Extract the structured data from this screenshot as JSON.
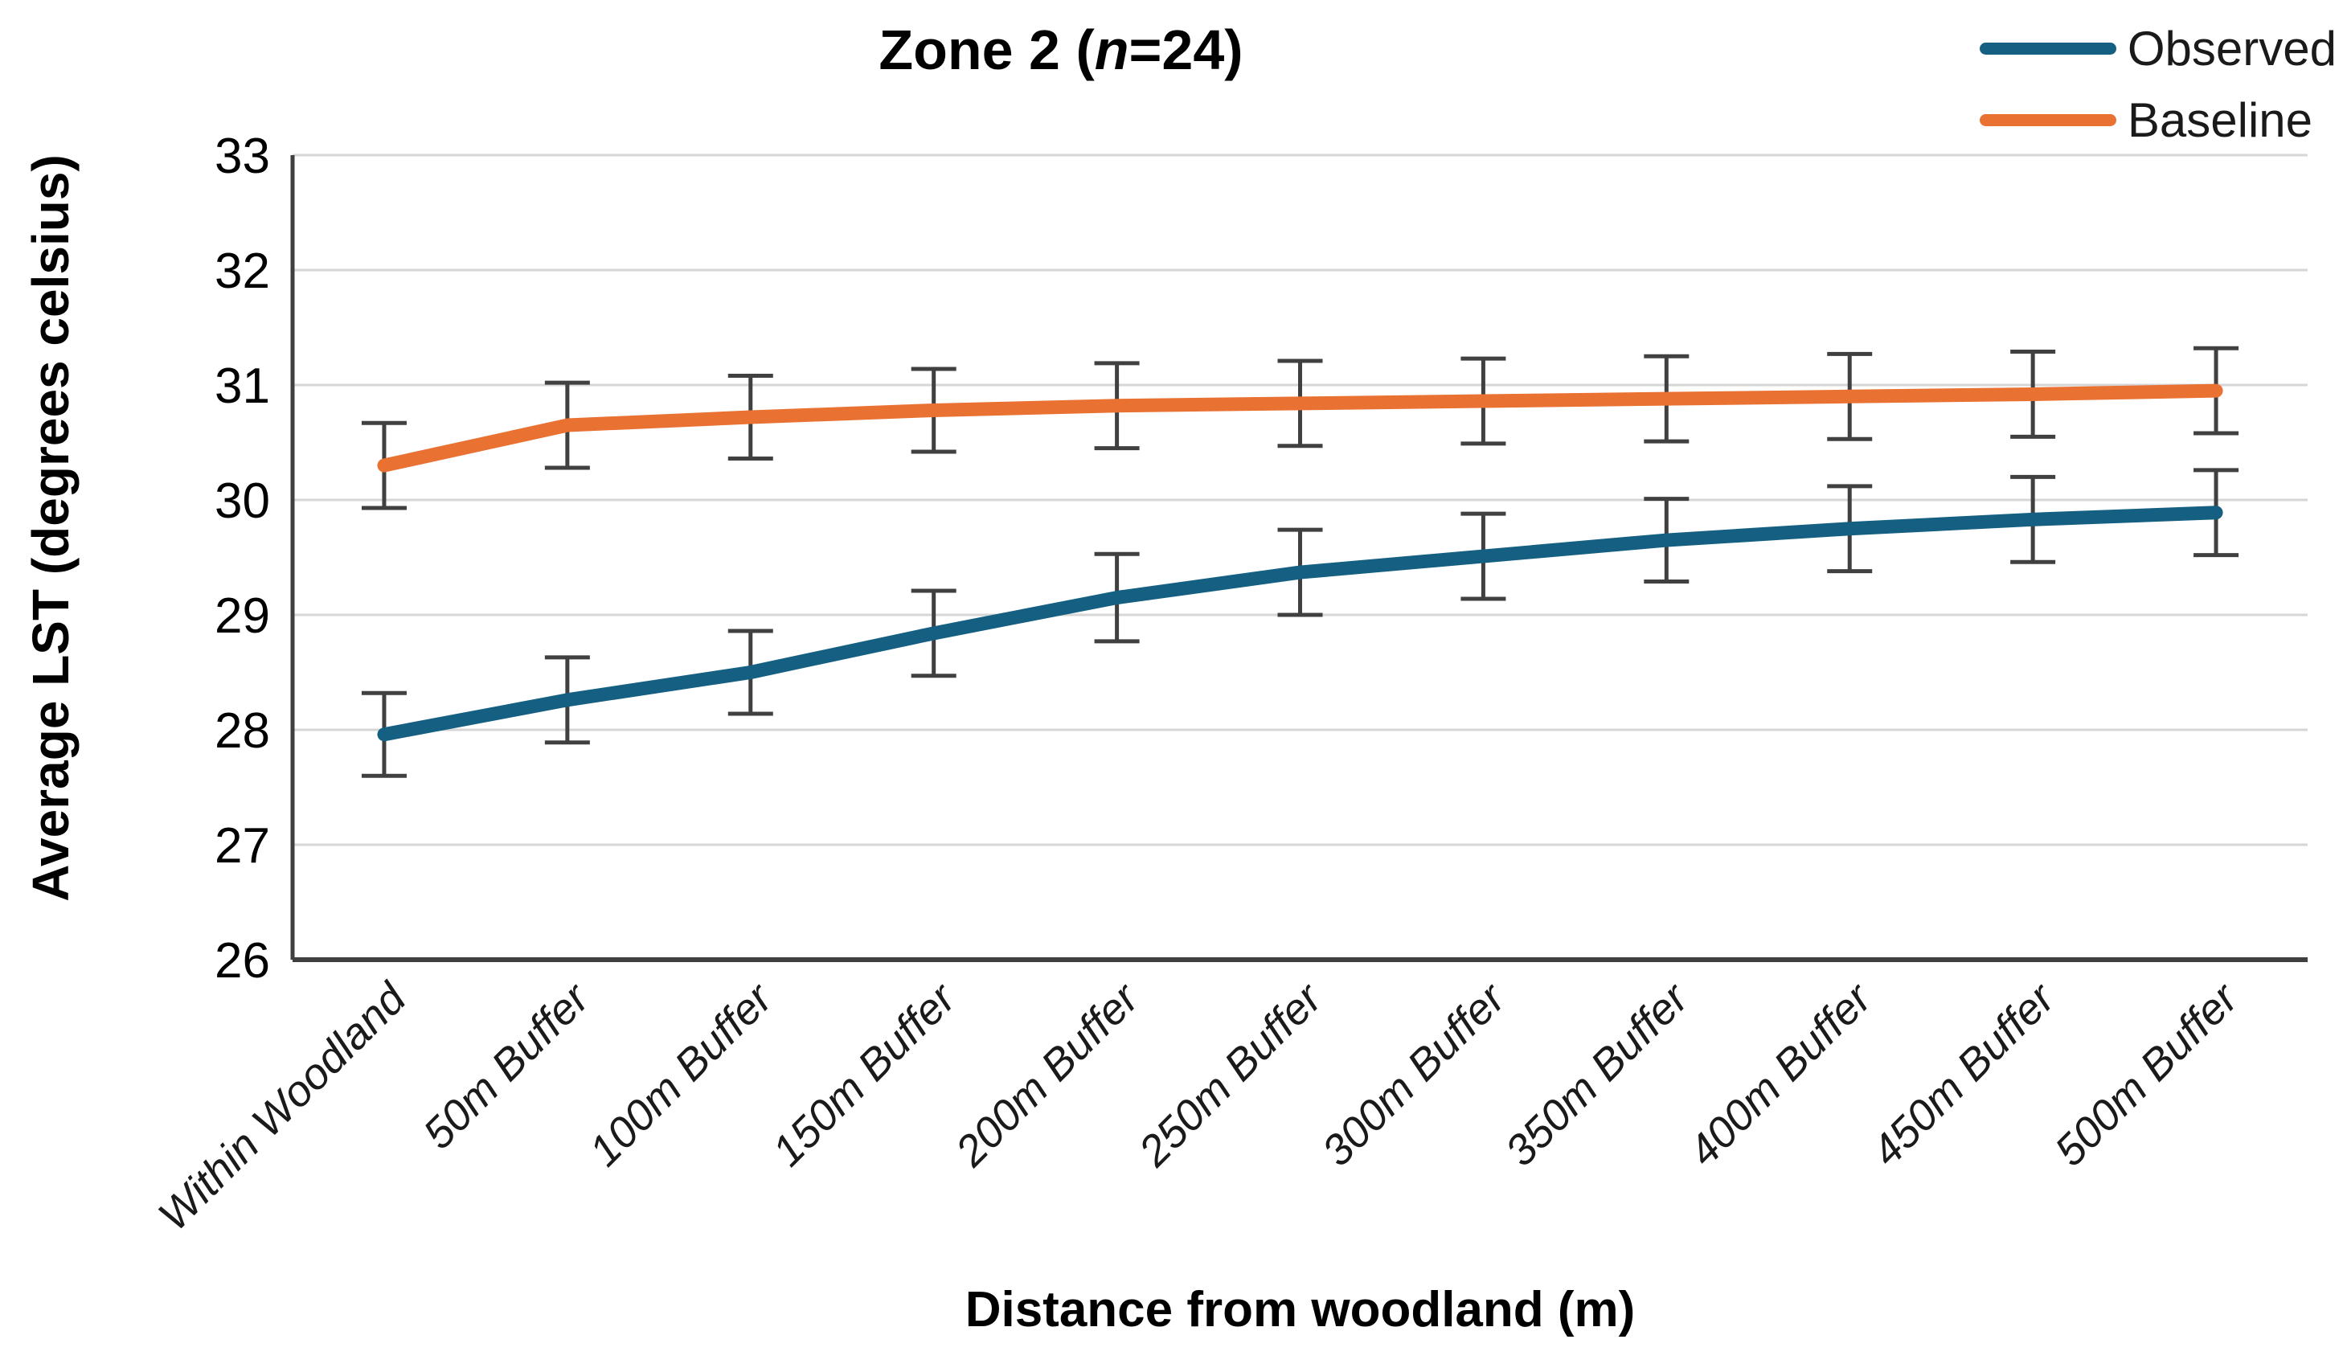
{
  "title": {
    "part1": "Zone 2 (",
    "italic": "n",
    "part3": "=24)"
  },
  "legend": [
    {
      "label": "Observed",
      "color": "#156082"
    },
    {
      "label": "Baseline",
      "color": "#E97132"
    }
  ],
  "y_axis": {
    "title": "Average LST (degrees celsius)",
    "ticks": [
      33,
      32,
      31,
      30,
      29,
      28,
      27,
      26
    ]
  },
  "x_axis": {
    "title": "Distance from woodland (m)"
  },
  "chart_data": {
    "type": "line",
    "title": "Zone 2 (n=24)",
    "xlabel": "Distance from woodland (m)",
    "ylabel": "Average LST (degrees celsius)",
    "ylim": [
      26,
      33
    ],
    "y_tick_step": 1,
    "grid": "horizontal",
    "legend_position": "top-right",
    "categories": [
      "Within Woodland",
      "50m Buffer",
      "100m Buffer",
      "150m Buffer",
      "200m Buffer",
      "250m Buffer",
      "300m Buffer",
      "350m Buffer",
      "400m Buffer",
      "450m Buffer",
      "500m Buffer"
    ],
    "series": [
      {
        "name": "Observed",
        "color": "#156082",
        "values": [
          27.96,
          28.26,
          28.5,
          28.84,
          29.15,
          29.37,
          29.51,
          29.65,
          29.75,
          29.83,
          29.89
        ],
        "errors": [
          0.36,
          0.37,
          0.36,
          0.37,
          0.38,
          0.37,
          0.37,
          0.36,
          0.37,
          0.37,
          0.37
        ]
      },
      {
        "name": "Baseline",
        "color": "#E97132",
        "values": [
          30.3,
          30.65,
          30.72,
          30.78,
          30.82,
          30.84,
          30.86,
          30.88,
          30.9,
          30.92,
          30.95
        ],
        "errors": [
          0.37,
          0.37,
          0.36,
          0.36,
          0.37,
          0.37,
          0.37,
          0.37,
          0.37,
          0.37,
          0.37
        ]
      }
    ],
    "error_bar_color": "#404040",
    "gridline_color": "#D6D6D6",
    "axis_line_color": "#3F3F3F"
  }
}
